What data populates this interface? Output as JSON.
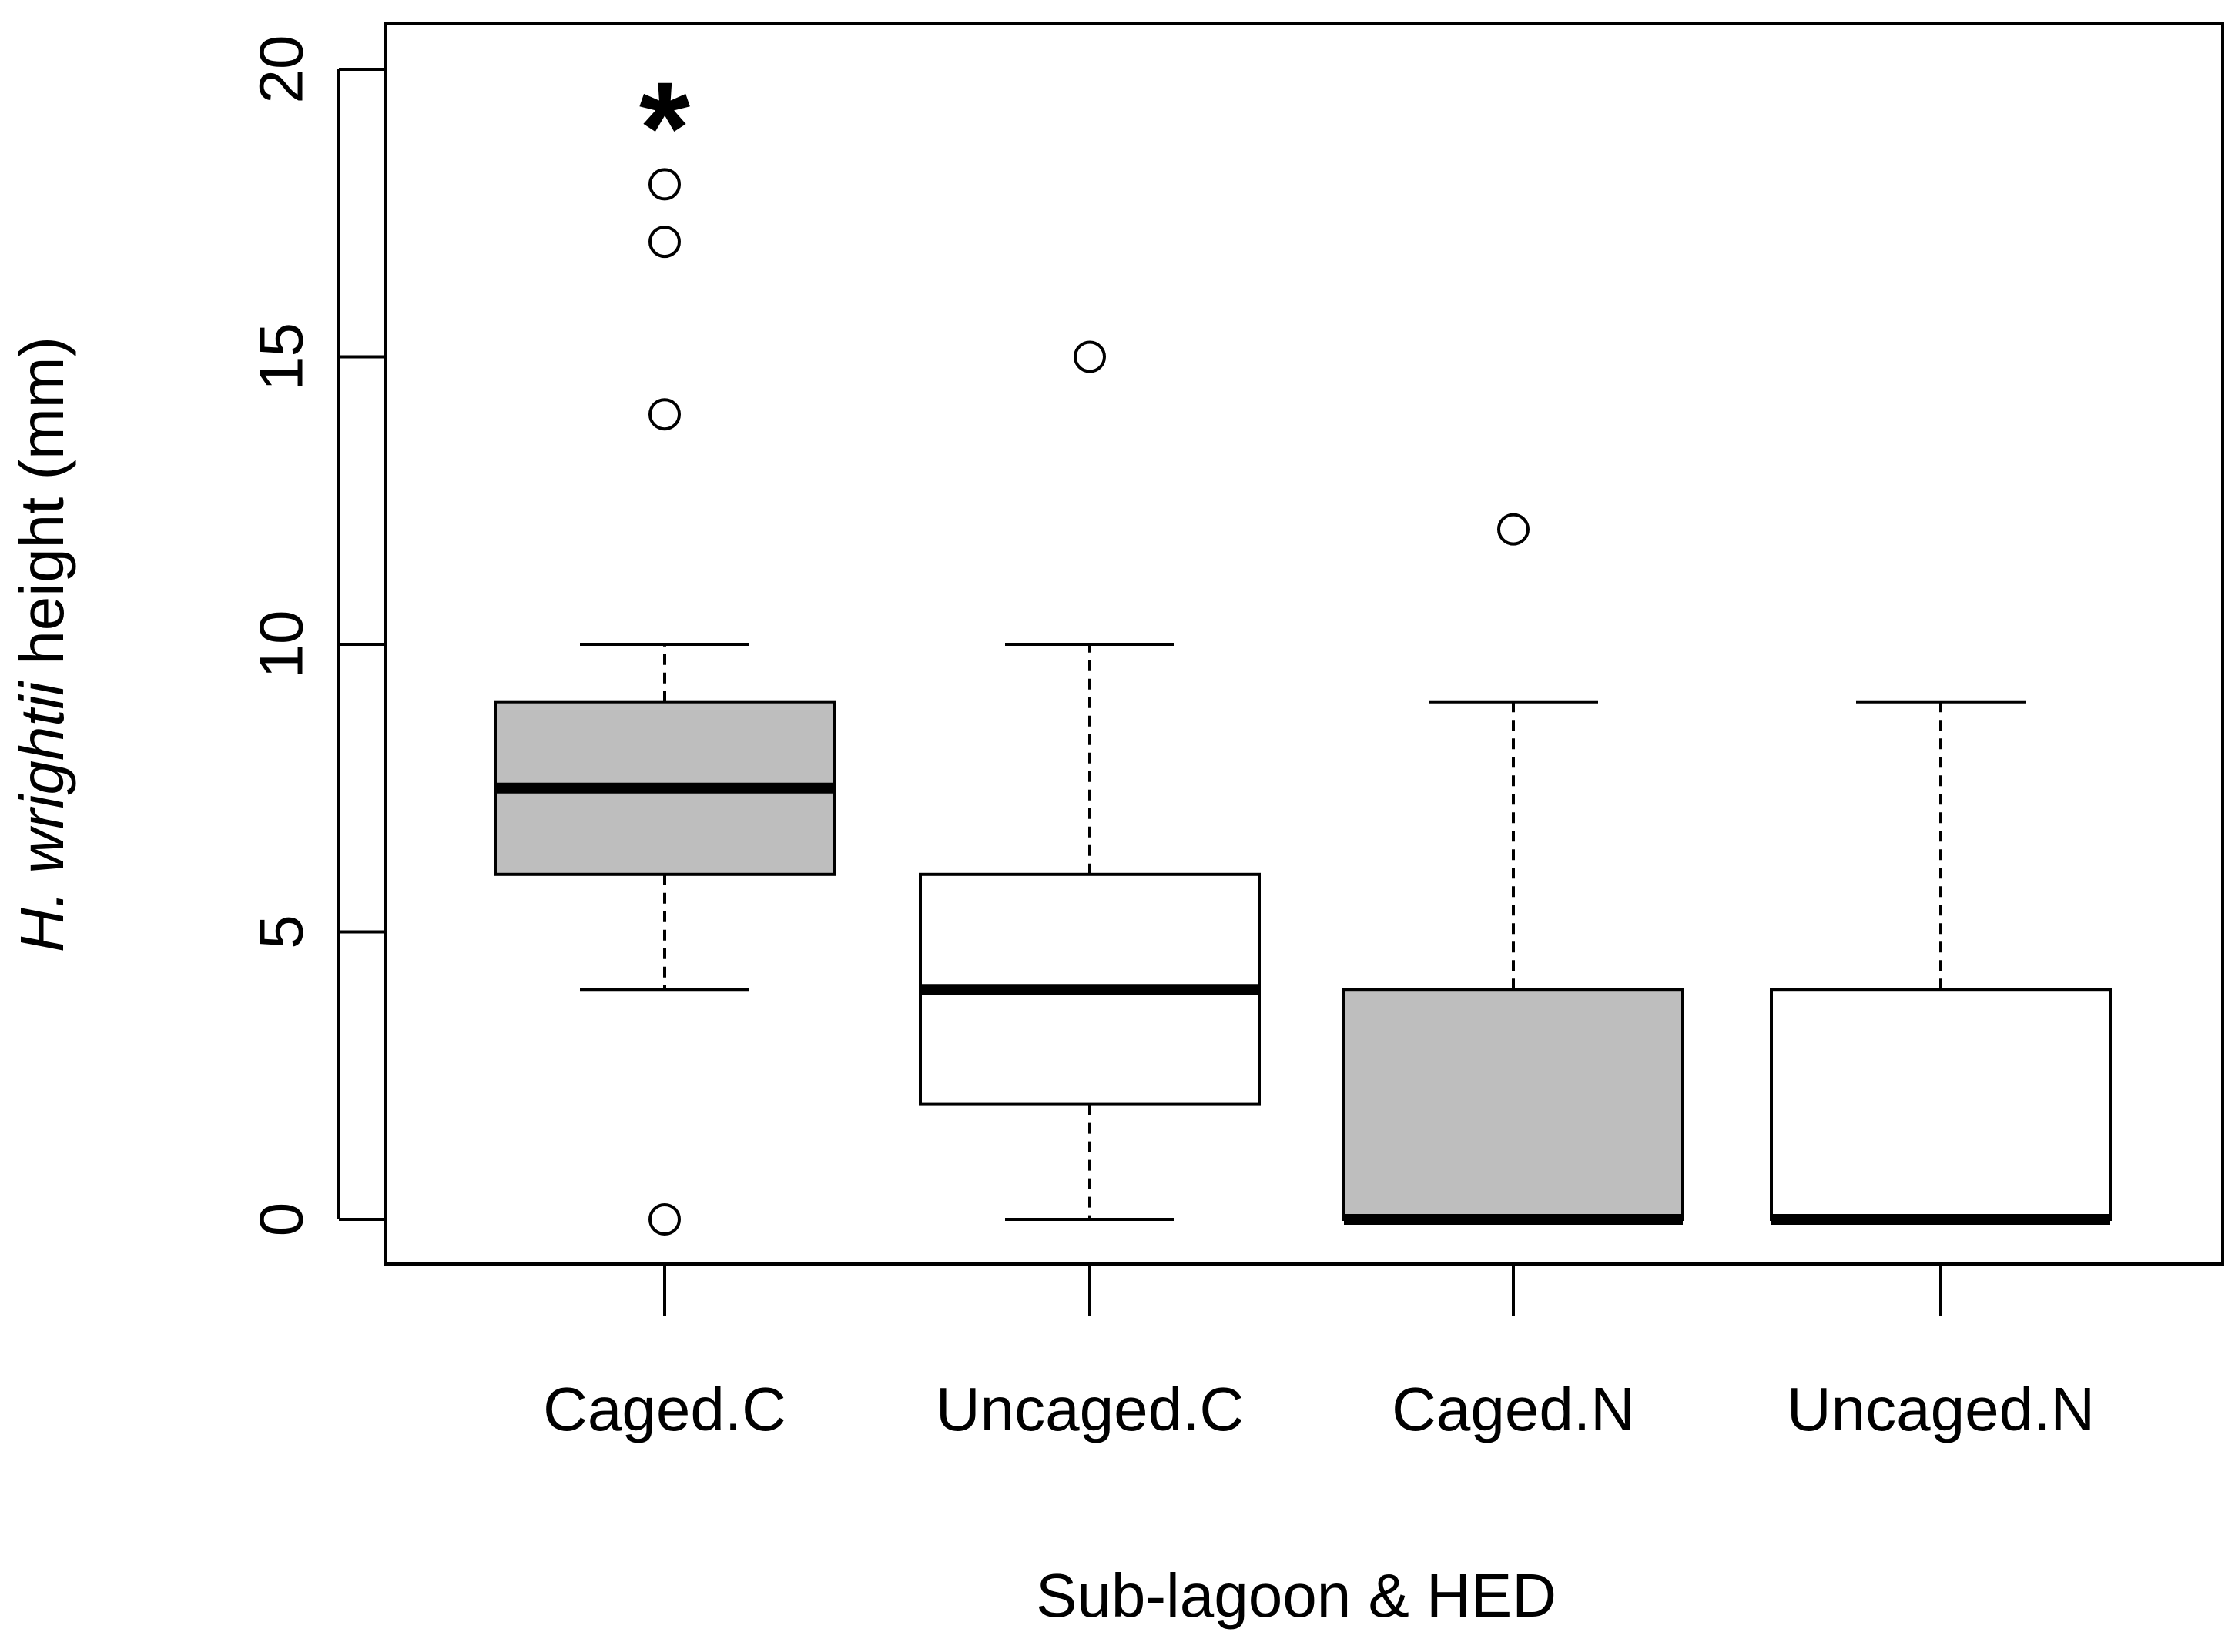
{
  "chart_data": {
    "type": "boxplot",
    "title": "",
    "xlabel": "Sub-lagoon & HED",
    "ylabel": {
      "italic": "H. wrightii",
      "rest": " height (mm)"
    },
    "ylim": [
      -1,
      21
    ],
    "yticks": [
      0,
      5,
      10,
      15,
      20
    ],
    "ytick_labels": [
      "0",
      "5",
      "10",
      "15",
      "20"
    ],
    "categories": [
      "Caged.C",
      "Uncaged.C",
      "Caged.N",
      "Uncaged.N"
    ],
    "boxes": [
      {
        "name": "Caged.C",
        "fill": "#bebebe",
        "whisker_low": 4,
        "q1": 6,
        "median": 7.5,
        "q3": 9,
        "whisker_high": 10,
        "outliers": [
          0,
          14,
          17,
          18
        ]
      },
      {
        "name": "Uncaged.C",
        "fill": "#ffffff",
        "whisker_low": 0,
        "q1": 2,
        "median": 4,
        "q3": 6,
        "whisker_high": 10,
        "outliers": [
          15
        ]
      },
      {
        "name": "Caged.N",
        "fill": "#bebebe",
        "whisker_low": 0,
        "q1": 0,
        "median": 0,
        "q3": 4,
        "whisker_high": 9,
        "outliers": [
          12
        ]
      },
      {
        "name": "Uncaged.N",
        "fill": "#ffffff",
        "whisker_low": 0,
        "q1": 0,
        "median": 0,
        "q3": 4,
        "whisker_high": 9,
        "outliers": []
      }
    ],
    "annotations": [
      {
        "text": "*",
        "category": "Caged.C",
        "y": 19.2
      }
    ],
    "grid": false,
    "legend": "none"
  }
}
